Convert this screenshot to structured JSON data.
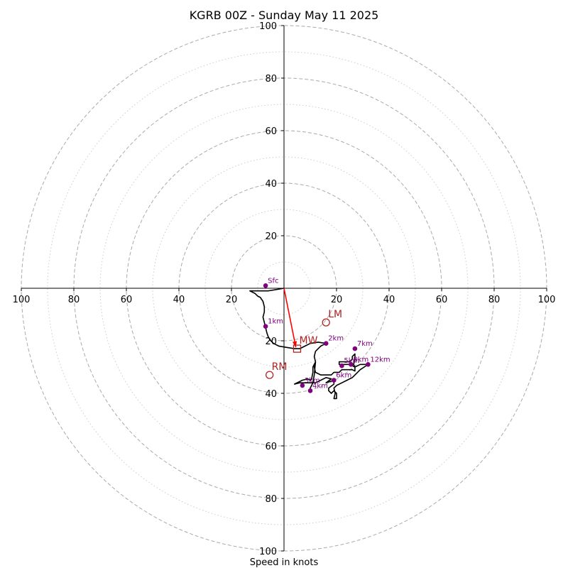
{
  "chart_data": {
    "type": "hodograph",
    "title": "KGRB 00Z - Sunday May 11 2025",
    "xlabel": "Speed in knots",
    "units": "knots",
    "ring_major": [
      20,
      40,
      60,
      80,
      100
    ],
    "ring_minor": [
      10,
      30,
      50,
      70,
      90
    ],
    "axis_ticks": [
      "100",
      "80",
      "60",
      "40",
      "20",
      "20",
      "40",
      "60",
      "80",
      "100"
    ],
    "y_ticks_top": [
      "20",
      "40",
      "60",
      "80",
      "100"
    ],
    "y_ticks_bottom": [
      "20",
      "40",
      "60",
      "80",
      "100"
    ],
    "grid": true,
    "trace": [
      [
        0,
        0
      ],
      [
        -6,
        -1
      ],
      [
        -10,
        -1
      ],
      [
        -13,
        -1
      ],
      [
        -12,
        -1.5
      ],
      [
        -11,
        -2
      ],
      [
        -10,
        -3
      ],
      [
        -9,
        -3.5
      ],
      [
        -8,
        -5
      ],
      [
        -7.5,
        -7
      ],
      [
        -7.5,
        -9
      ],
      [
        -8,
        -11
      ],
      [
        -7.5,
        -13
      ],
      [
        -7,
        -15
      ],
      [
        -6.5,
        -17
      ],
      [
        -6,
        -18.5
      ],
      [
        -5,
        -20
      ],
      [
        -4,
        -21
      ],
      [
        -2,
        -22
      ],
      [
        1,
        -22.5
      ],
      [
        4,
        -23
      ],
      [
        6,
        -23
      ],
      [
        8,
        -22
      ],
      [
        10,
        -21
      ],
      [
        13,
        -20.5
      ],
      [
        16,
        -21
      ],
      [
        14,
        -22
      ],
      [
        13,
        -23
      ],
      [
        12,
        -24
      ],
      [
        11.5,
        -26
      ],
      [
        12,
        -28
      ],
      [
        11.5,
        -30
      ],
      [
        12,
        -32
      ],
      [
        14,
        -33
      ],
      [
        16,
        -33
      ],
      [
        18,
        -33
      ],
      [
        19,
        -32
      ],
      [
        21,
        -32
      ],
      [
        22,
        -31
      ],
      [
        24,
        -31
      ],
      [
        26,
        -31
      ],
      [
        27,
        -31.5
      ],
      [
        27,
        -30
      ],
      [
        25,
        -29
      ],
      [
        22,
        -29
      ],
      [
        21,
        -29
      ],
      [
        21,
        -28
      ],
      [
        22,
        -28
      ],
      [
        25,
        -28
      ],
      [
        26,
        -27
      ],
      [
        26,
        -26
      ],
      [
        27,
        -25
      ],
      [
        27,
        -27
      ],
      [
        26.5,
        -29
      ],
      [
        27,
        -30
      ],
      [
        29,
        -29
      ],
      [
        31,
        -29
      ],
      [
        32,
        -29
      ],
      [
        30.5,
        -30
      ],
      [
        29,
        -31
      ],
      [
        28,
        -32
      ],
      [
        26,
        -34
      ],
      [
        24,
        -35
      ],
      [
        22,
        -36
      ],
      [
        20,
        -37
      ],
      [
        19,
        -38
      ],
      [
        19.5,
        -40
      ],
      [
        19,
        -42
      ],
      [
        20,
        -42
      ],
      [
        20,
        -40
      ],
      [
        19,
        -39
      ],
      [
        18,
        -40
      ],
      [
        17,
        -39
      ],
      [
        17,
        -38
      ],
      [
        19,
        -36.5
      ],
      [
        19,
        -35
      ],
      [
        17.5,
        -35.5
      ],
      [
        16,
        -36
      ],
      [
        18,
        -34.5
      ],
      [
        16,
        -34
      ],
      [
        14,
        -35
      ],
      [
        12,
        -36
      ],
      [
        10,
        -36
      ],
      [
        8,
        -36
      ],
      [
        6,
        -36
      ],
      [
        4,
        -36.5
      ],
      [
        7,
        -35
      ],
      [
        9,
        -34.5
      ],
      [
        10,
        -35
      ],
      [
        10.5,
        -34.5
      ],
      [
        11,
        -32
      ],
      [
        11,
        -30
      ],
      [
        12,
        -28
      ],
      [
        11.5,
        -33
      ],
      [
        11,
        -36
      ],
      [
        10,
        -38
      ],
      [
        10,
        -39
      ]
    ],
    "height_points": [
      {
        "label": "Sfc",
        "u": -7,
        "v": 1
      },
      {
        "label": "1km",
        "u": -7,
        "v": -14.5
      },
      {
        "label": "2km",
        "u": 16,
        "v": -21
      },
      {
        "label": "3km",
        "u": 7,
        "v": -37
      },
      {
        "label": "4km",
        "u": 10,
        "v": -39
      },
      {
        "label": "5km",
        "u": 22,
        "v": -29.5
      },
      {
        "label": "6km",
        "u": 19,
        "v": -35
      },
      {
        "label": "7km",
        "u": 27,
        "v": -23
      },
      {
        "label": "8km",
        "u": 25.5,
        "v": -29
      },
      {
        "label": "12km",
        "u": 32,
        "v": -29
      }
    ],
    "motion_markers": [
      {
        "label": "LM",
        "u": 16,
        "v": -13,
        "shape": "circle"
      },
      {
        "label": "RM",
        "u": -5.5,
        "v": -33,
        "shape": "circle"
      },
      {
        "label": "MW",
        "u": 5,
        "v": -23,
        "shape": "square"
      }
    ],
    "vector": {
      "from": [
        0,
        0
      ],
      "to": [
        4.5,
        -22.5
      ]
    },
    "colors": {
      "trace": "#000000",
      "height_points": "#800080",
      "markers": "#b22222",
      "vector": "#ff0000",
      "grid": "#aaaaaa"
    }
  }
}
